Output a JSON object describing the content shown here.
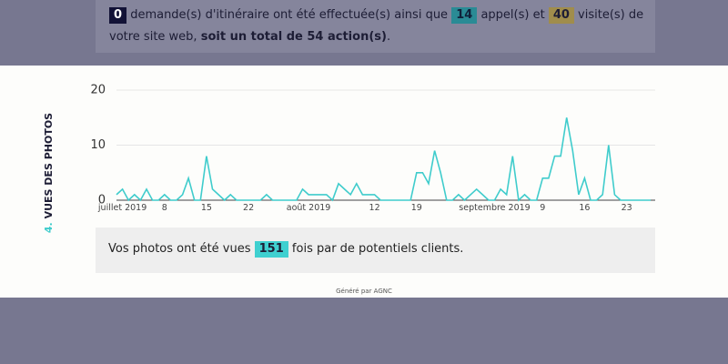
{
  "summary": {
    "itineraries": "0",
    "text1": "demande(s) d'itinéraire ont été effectuée(s) ainsi que",
    "calls": "14",
    "text2": "appel(s) et",
    "visits": "40",
    "text3": "visite(s) de votre site web,",
    "total": "soit un total de 54 action(s)",
    "end": "."
  },
  "section": {
    "number": "4.",
    "title": "VUES DES PHOTOS"
  },
  "chart_data": {
    "type": "line",
    "color": "#3fcccc",
    "grid": true,
    "categories": [
      null,
      "juillet 2019",
      null,
      null,
      null,
      null,
      null,
      null,
      "8",
      null,
      null,
      null,
      null,
      null,
      null,
      "15",
      null,
      null,
      null,
      null,
      null,
      null,
      "22",
      null,
      null,
      null,
      null,
      null,
      null,
      null,
      null,
      null,
      "août 2019",
      null,
      null,
      null,
      null,
      null,
      null,
      null,
      null,
      null,
      null,
      "12",
      null,
      null,
      null,
      null,
      null,
      null,
      "19",
      null,
      null,
      null,
      null,
      null,
      null,
      null,
      null,
      null,
      null,
      null,
      null,
      "septembre 2019",
      null,
      null,
      null,
      null,
      null,
      null,
      null,
      "9",
      null,
      null,
      null,
      null,
      null,
      null,
      "16",
      null,
      null,
      null,
      null,
      null,
      null,
      "23",
      null,
      null,
      null,
      null
    ],
    "values": [
      1,
      2,
      0,
      1,
      0,
      2,
      0,
      0,
      1,
      0,
      0,
      1,
      4,
      0,
      0,
      8,
      2,
      1,
      0,
      1,
      0,
      0,
      0,
      0,
      0,
      1,
      0,
      0,
      0,
      0,
      0,
      2,
      1,
      1,
      1,
      1,
      0,
      3,
      2,
      1,
      3,
      1,
      1,
      1,
      0,
      0,
      0,
      0,
      0,
      0,
      5,
      5,
      3,
      9,
      5,
      0,
      0,
      1,
      0,
      1,
      2,
      1,
      0,
      0,
      2,
      1,
      8,
      0,
      1,
      0,
      0,
      4,
      4,
      8,
      8,
      15,
      9,
      1,
      4,
      0,
      0,
      1,
      10,
      1,
      0,
      0,
      0,
      0,
      0,
      0
    ],
    "ylim": [
      0,
      20
    ],
    "yticks": [
      0,
      10,
      20
    ]
  },
  "photos": {
    "text1": "Vos photos ont été vues",
    "count": "151",
    "text2": "fois par de potentiels clients."
  },
  "footer": "Généré par AGNC"
}
